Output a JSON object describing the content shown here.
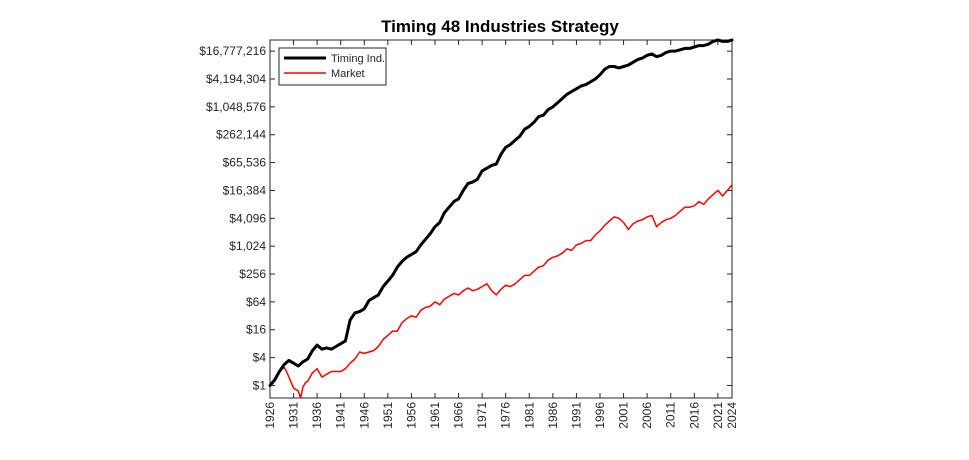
{
  "chart_data": {
    "type": "line",
    "title": "Timing 48 Industries Strategy",
    "xlabel": "",
    "ylabel": "",
    "y_scale": "log2",
    "xlim": [
      1926,
      2024
    ],
    "ylim_log2": [
      -0.9,
      24.8
    ],
    "x_ticks": [
      1926,
      1931,
      1936,
      1941,
      1946,
      1951,
      1956,
      1961,
      1966,
      1971,
      1976,
      1981,
      1986,
      1991,
      1996,
      2001,
      2006,
      2011,
      2016,
      2021,
      2024
    ],
    "x_tick_labels": [
      "1926",
      "1931",
      "1936",
      "1941",
      "1946",
      "1951",
      "1956",
      "1961",
      "1966",
      "1971",
      "1976",
      "1981",
      "1986",
      "1991",
      "1996",
      "2001",
      "2006",
      "2011",
      "2016",
      "2021",
      "2024"
    ],
    "y_ticks_log2": [
      0,
      2,
      4,
      6,
      8,
      10,
      12,
      14,
      16,
      18,
      20,
      22,
      24
    ],
    "y_tick_labels": [
      "$1",
      "$4",
      "$16",
      "$64",
      "$256",
      "$1,024",
      "$4,096",
      "$16,384",
      "$65,536",
      "$262,144",
      "$1,048,576",
      "$4,194,304",
      "$16,777,216"
    ],
    "legend": {
      "position": "top-left",
      "entries": [
        "Timing Ind.",
        "Market"
      ]
    },
    "series": [
      {
        "name": "Timing Ind.",
        "color": "#000000",
        "line_width": 3,
        "x": [
          1926,
          1927,
          1928,
          1929,
          1930,
          1931,
          1932,
          1933,
          1934,
          1935,
          1936,
          1937,
          1938,
          1939,
          1940,
          1941,
          1942,
          1943,
          1944,
          1945,
          1946,
          1947,
          1948,
          1949,
          1950,
          1951,
          1952,
          1953,
          1954,
          1955,
          1956,
          1957,
          1958,
          1959,
          1960,
          1961,
          1962,
          1963,
          1964,
          1965,
          1966,
          1967,
          1968,
          1969,
          1970,
          1971,
          1972,
          1973,
          1974,
          1975,
          1976,
          1977,
          1978,
          1979,
          1980,
          1981,
          1982,
          1983,
          1984,
          1985,
          1986,
          1987,
          1988,
          1989,
          1990,
          1991,
          1992,
          1993,
          1994,
          1995,
          1996,
          1997,
          1998,
          1999,
          2000,
          2001,
          2002,
          2003,
          2004,
          2005,
          2006,
          2007,
          2008,
          2009,
          2010,
          2011,
          2012,
          2013,
          2014,
          2015,
          2016,
          2017,
          2018,
          2019,
          2020,
          2021,
          2022,
          2023,
          2024
        ],
        "y_log2": [
          0.0,
          0.4,
          1.0,
          1.5,
          1.8,
          1.6,
          1.4,
          1.7,
          1.9,
          2.5,
          2.9,
          2.6,
          2.7,
          2.6,
          2.8,
          3.0,
          3.2,
          4.7,
          5.2,
          5.3,
          5.5,
          6.1,
          6.3,
          6.5,
          7.1,
          7.5,
          7.9,
          8.5,
          8.9,
          9.2,
          9.4,
          9.6,
          10.1,
          10.5,
          10.9,
          11.4,
          11.7,
          12.4,
          12.8,
          13.2,
          13.4,
          14.0,
          14.5,
          14.6,
          14.8,
          15.4,
          15.6,
          15.8,
          15.9,
          16.6,
          17.1,
          17.3,
          17.6,
          17.9,
          18.4,
          18.6,
          18.9,
          19.3,
          19.4,
          19.8,
          20.0,
          20.3,
          20.6,
          20.9,
          21.1,
          21.3,
          21.5,
          21.6,
          21.8,
          22.0,
          22.3,
          22.7,
          22.9,
          22.9,
          22.8,
          22.9,
          23.0,
          23.2,
          23.4,
          23.5,
          23.7,
          23.8,
          23.6,
          23.7,
          23.9,
          24.0,
          24.0,
          24.1,
          24.2,
          24.2,
          24.3,
          24.4,
          24.4,
          24.5,
          24.7,
          24.8,
          24.7,
          24.7,
          24.8
        ]
      },
      {
        "name": "Market",
        "color": "#ff0000",
        "line_width": 1.5,
        "x": [
          1926,
          1927,
          1928,
          1929,
          1929.5,
          1930,
          1931,
          1932,
          1932.5,
          1933,
          1933.5,
          1934,
          1935,
          1936,
          1937,
          1938,
          1939,
          1940,
          1941,
          1942,
          1943,
          1944,
          1945,
          1946,
          1947,
          1948,
          1949,
          1950,
          1951,
          1952,
          1953,
          1954,
          1955,
          1956,
          1957,
          1958,
          1959,
          1960,
          1961,
          1962,
          1963,
          1964,
          1965,
          1966,
          1967,
          1968,
          1969,
          1970,
          1971,
          1972,
          1973,
          1974,
          1975,
          1976,
          1977,
          1978,
          1979,
          1980,
          1981,
          1982,
          1983,
          1984,
          1985,
          1986,
          1987,
          1988,
          1989,
          1990,
          1991,
          1992,
          1993,
          1994,
          1995,
          1996,
          1997,
          1998,
          1999,
          2000,
          2001,
          2002,
          2003,
          2004,
          2005,
          2006,
          2007,
          2008,
          2009,
          2010,
          2011,
          2012,
          2013,
          2014,
          2015,
          2016,
          2017,
          2018,
          2019,
          2020,
          2021,
          2022,
          2023,
          2024
        ],
        "y_log2": [
          0.0,
          0.4,
          1.0,
          1.3,
          1.0,
          0.6,
          -0.2,
          -0.4,
          -0.9,
          -0.1,
          0.2,
          0.3,
          0.9,
          1.2,
          0.6,
          0.8,
          1.0,
          1.0,
          1.0,
          1.2,
          1.6,
          1.9,
          2.4,
          2.3,
          2.4,
          2.5,
          2.8,
          3.3,
          3.6,
          3.9,
          3.9,
          4.5,
          4.8,
          5.0,
          4.9,
          5.4,
          5.6,
          5.7,
          6.0,
          5.8,
          6.2,
          6.4,
          6.6,
          6.5,
          6.8,
          7.0,
          6.8,
          6.9,
          7.1,
          7.3,
          6.8,
          6.5,
          6.9,
          7.2,
          7.1,
          7.3,
          7.6,
          7.9,
          7.9,
          8.2,
          8.5,
          8.6,
          9.0,
          9.2,
          9.3,
          9.5,
          9.8,
          9.7,
          10.1,
          10.2,
          10.4,
          10.4,
          10.8,
          11.1,
          11.5,
          11.8,
          12.1,
          12.0,
          11.7,
          11.2,
          11.6,
          11.8,
          11.9,
          12.1,
          12.2,
          11.4,
          11.7,
          11.9,
          12.0,
          12.2,
          12.5,
          12.8,
          12.8,
          12.9,
          13.2,
          13.0,
          13.4,
          13.7,
          14.0,
          13.6,
          14.0,
          14.4
        ]
      }
    ]
  }
}
